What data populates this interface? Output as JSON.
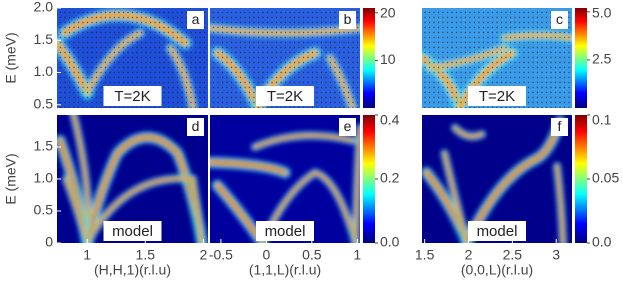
{
  "chart_data": [
    {
      "type": "heatmap",
      "label": "a",
      "annotation": "T=2K",
      "ylabel": "E (meV)",
      "xlim": [
        0.74,
        2.04
      ],
      "ylim": [
        0.45,
        2.0
      ],
      "yticks": [
        {
          "value": 0.5,
          "label": "0.5"
        },
        {
          "value": 1,
          "label": "1.0"
        },
        1.5,
        {
          "value": 2,
          "label": "2.0"
        }
      ]
    },
    {
      "type": "heatmap",
      "label": "b",
      "annotation": "T=2K",
      "xlim": [
        -0.62,
        1.03
      ],
      "ylim": [
        0.45,
        2.0
      ],
      "colorbar": {
        "lim": [
          0,
          21
        ],
        "ticks": [
          10,
          20
        ]
      }
    },
    {
      "type": "heatmap",
      "label": "c",
      "annotation": "T=2K",
      "xlim": [
        1.47,
        3.18
      ],
      "ylim": [
        0.45,
        2.0
      ],
      "colorbar": {
        "lim": [
          0,
          5.2
        ],
        "ticks": [
          2.5,
          {
            "value": 5,
            "label": "5.0"
          }
        ]
      }
    },
    {
      "type": "heatmap",
      "label": "d",
      "annotation": "model",
      "ylabel": "E (meV)",
      "xlabel": "(H,H,1)(r.l.u)",
      "xlim": [
        0.74,
        2.04
      ],
      "ylim": [
        0,
        2.0
      ],
      "xticks": [
        1,
        1.5,
        2
      ],
      "yticks": [
        0,
        0.5,
        {
          "value": 1,
          "label": "1.0"
        },
        1.5
      ]
    },
    {
      "type": "heatmap",
      "label": "e",
      "annotation": "model",
      "xlabel": "(1,1,L)(r.l.u)",
      "xlim": [
        -0.62,
        1.03
      ],
      "ylim": [
        0,
        2.0
      ],
      "xticks": [
        -0.5,
        0,
        0.5,
        1
      ],
      "colorbar": {
        "lim": [
          0,
          0.4
        ],
        "ticks": [
          {
            "value": 0,
            "label": "0.0"
          },
          0.2,
          0.4
        ]
      }
    },
    {
      "type": "heatmap",
      "label": "f",
      "annotation": "model",
      "xlabel": "(0,0,L)(r.l.u)",
      "xlim": [
        1.47,
        3.18
      ],
      "ylim": [
        0,
        2.0
      ],
      "xticks": [
        1.5,
        2,
        2.5,
        3
      ],
      "colorbar": {
        "lim": [
          0,
          0.1
        ],
        "ticks": [
          {
            "value": 0,
            "label": "0.0"
          },
          0.05,
          0.1
        ]
      }
    }
  ]
}
